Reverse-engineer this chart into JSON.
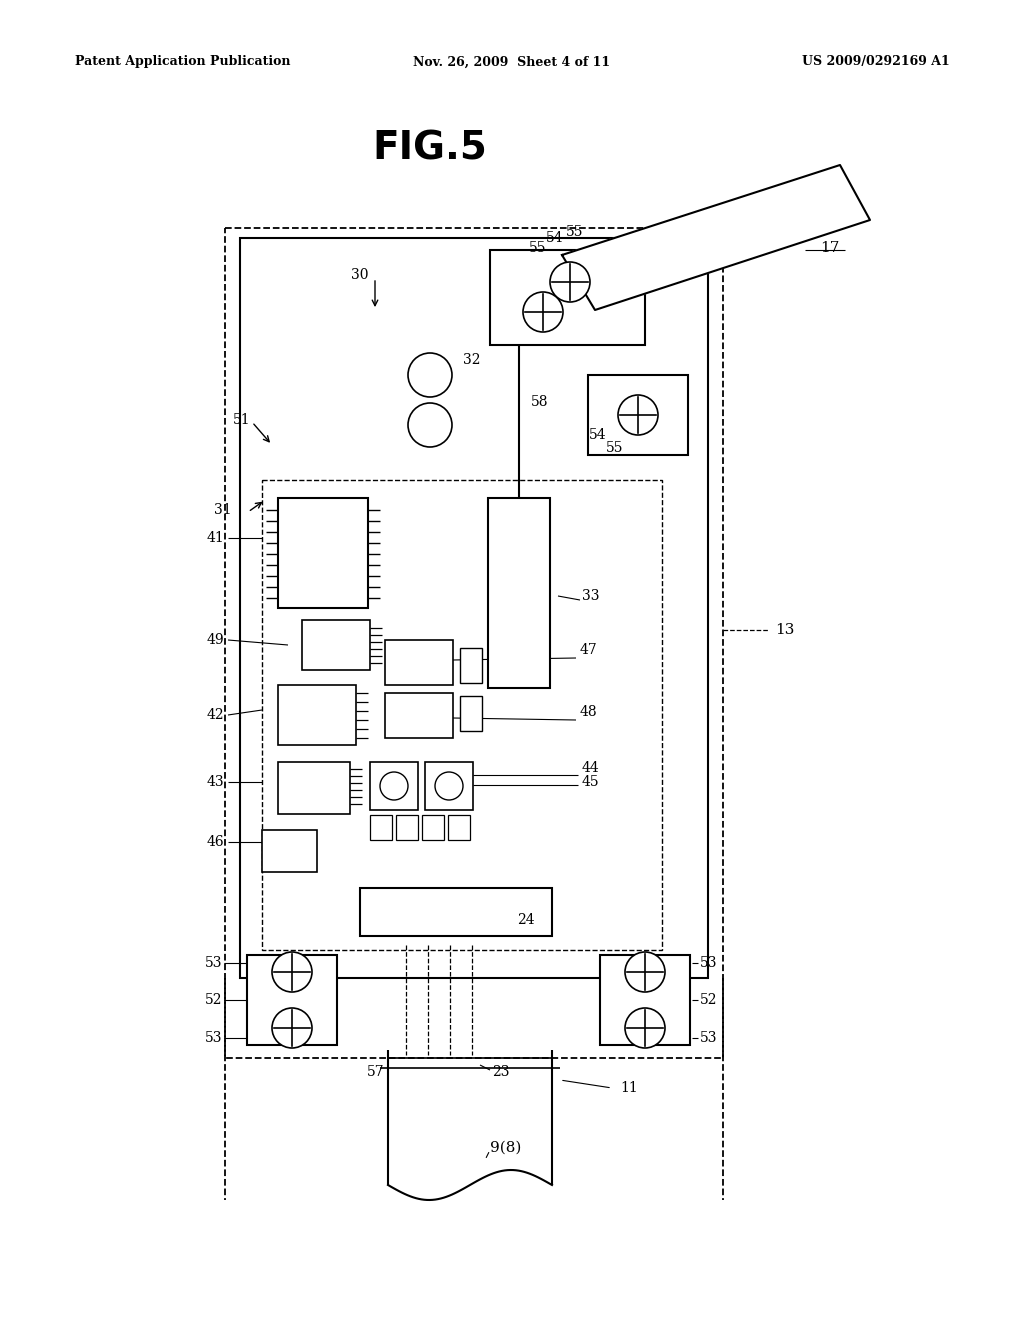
{
  "bg_color": "#ffffff",
  "line_color": "#000000",
  "header_left": "Patent Application Publication",
  "header_mid": "Nov. 26, 2009  Sheet 4 of 11",
  "header_right": "US 2009/0292169 A1",
  "fig_title": "FIG.5"
}
